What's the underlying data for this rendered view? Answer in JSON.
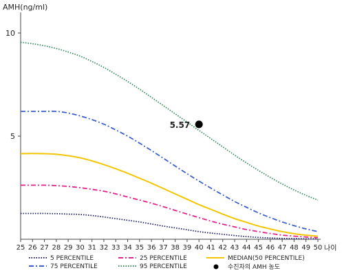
{
  "chart_data": {
    "type": "line",
    "ylabel": "AMH(ng/ml)",
    "xlabel": "나이",
    "x": [
      25,
      26,
      27,
      28,
      29,
      30,
      31,
      32,
      33,
      34,
      35,
      36,
      37,
      38,
      39,
      40,
      41,
      42,
      43,
      44,
      45,
      46,
      47,
      48,
      49,
      50
    ],
    "xlim": [
      25,
      50
    ],
    "ylim": [
      0,
      11
    ],
    "yticks": [
      5,
      10
    ],
    "grid": false,
    "legend_position": "bottom",
    "series": [
      {
        "name": "5 PERCENTILE",
        "color": "#1a1a6e",
        "style": "dotted",
        "values": [
          1.25,
          1.25,
          1.25,
          1.24,
          1.22,
          1.2,
          1.15,
          1.08,
          1.0,
          0.92,
          0.84,
          0.74,
          0.64,
          0.55,
          0.46,
          0.37,
          0.3,
          0.24,
          0.18,
          0.13,
          0.09,
          0.06,
          0.04,
          0.03,
          0.02,
          0.02
        ]
      },
      {
        "name": "25 PERCENTILE",
        "color": "#e0218a",
        "style": "dashdot",
        "values": [
          2.62,
          2.62,
          2.62,
          2.6,
          2.56,
          2.5,
          2.42,
          2.33,
          2.2,
          2.05,
          1.9,
          1.75,
          1.58,
          1.4,
          1.22,
          1.05,
          0.88,
          0.73,
          0.6,
          0.47,
          0.37,
          0.28,
          0.2,
          0.15,
          0.11,
          0.08
        ]
      },
      {
        "name": "MEDIAN(50 PERCENTILE)",
        "color": "#f2c500",
        "style": "solid",
        "values": [
          4.15,
          4.16,
          4.15,
          4.12,
          4.05,
          3.95,
          3.8,
          3.62,
          3.42,
          3.2,
          2.96,
          2.72,
          2.46,
          2.2,
          1.94,
          1.68,
          1.45,
          1.22,
          1.0,
          0.82,
          0.64,
          0.5,
          0.37,
          0.27,
          0.2,
          0.15
        ]
      },
      {
        "name": "75 PERCENTILE",
        "color": "#3a5fcd",
        "style": "dashdot",
        "values": [
          6.2,
          6.2,
          6.2,
          6.2,
          6.12,
          5.98,
          5.8,
          5.58,
          5.3,
          5.0,
          4.66,
          4.3,
          3.93,
          3.55,
          3.18,
          2.82,
          2.48,
          2.15,
          1.83,
          1.55,
          1.28,
          1.05,
          0.84,
          0.66,
          0.5,
          0.37
        ]
      },
      {
        "name": "95 PERCENTILE",
        "color": "#2e8b57",
        "style": "dotted",
        "values": [
          9.55,
          9.48,
          9.38,
          9.25,
          9.08,
          8.88,
          8.62,
          8.33,
          8.0,
          7.65,
          7.28,
          6.88,
          6.48,
          6.08,
          5.68,
          5.28,
          4.88,
          4.48,
          4.08,
          3.7,
          3.34,
          3.0,
          2.68,
          2.39,
          2.13,
          1.9
        ]
      }
    ],
    "marker": {
      "name": "수진자의 AMH 농도",
      "x": 40,
      "y": 5.57,
      "label": "5.57",
      "color": "#000000"
    }
  }
}
